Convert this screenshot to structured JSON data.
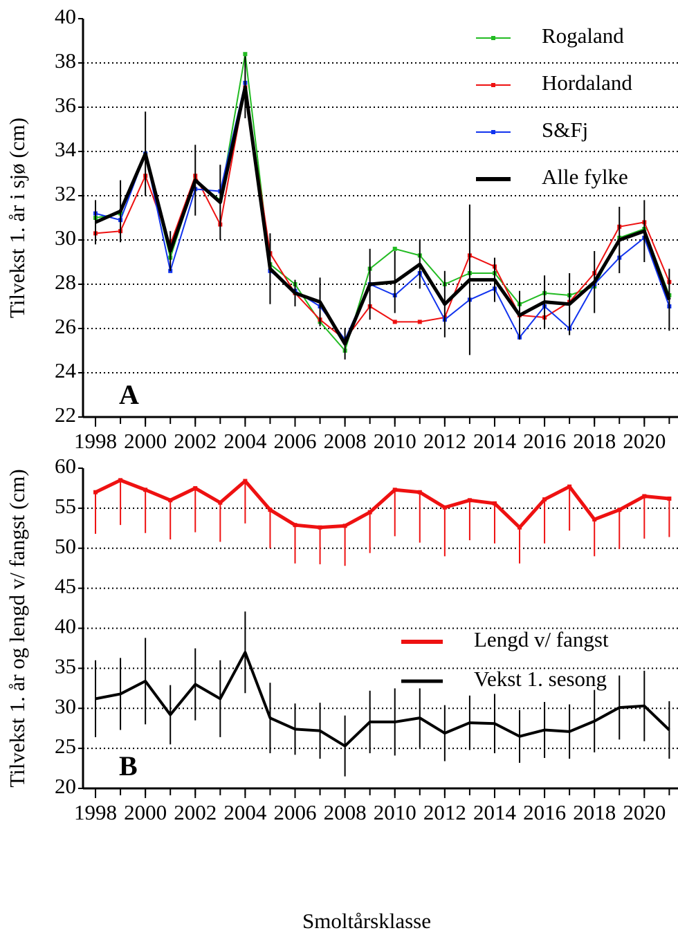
{
  "chart_data": [
    {
      "type": "line",
      "panel_label": "A",
      "y_label": "Tilvekst 1. år i sjø (cm)",
      "x": [
        1998,
        1999,
        2000,
        2001,
        2002,
        2003,
        2004,
        2005,
        2006,
        2007,
        2008,
        2009,
        2010,
        2011,
        2012,
        2013,
        2014,
        2015,
        2016,
        2017,
        2018,
        2019,
        2020,
        2021
      ],
      "xlim": [
        1997.5,
        2021.35
      ],
      "xticks": [
        1998,
        2000,
        2002,
        2004,
        2006,
        2008,
        2010,
        2012,
        2014,
        2016,
        2018,
        2020
      ],
      "ylim": [
        22,
        40
      ],
      "yticks": [
        22,
        24,
        26,
        28,
        30,
        32,
        34,
        36,
        38,
        40
      ],
      "grid": true,
      "legend": "upper right",
      "series": [
        {
          "name": "Rogaland",
          "color": "#22bb22",
          "width": 2,
          "marker": "square",
          "values": [
            31.0,
            31.2,
            33.9,
            29.2,
            32.7,
            31.8,
            38.4,
            28.9,
            28.0,
            26.3,
            25.0,
            28.7,
            29.6,
            29.3,
            28.0,
            28.5,
            28.5,
            27.1,
            27.6,
            27.5,
            27.9,
            30.1,
            30.5,
            27.5
          ]
        },
        {
          "name": "Hordaland",
          "color": "#ee1111",
          "width": 2,
          "marker": "square",
          "values": [
            30.3,
            30.4,
            32.9,
            29.8,
            32.9,
            30.7,
            36.9,
            29.4,
            27.6,
            26.4,
            25.5,
            27.0,
            26.3,
            26.3,
            26.5,
            29.3,
            28.8,
            26.6,
            26.5,
            27.2,
            28.5,
            30.6,
            30.8,
            28.1
          ]
        },
        {
          "name": "S&Fj",
          "color": "#1133ee",
          "width": 2,
          "marker": "square",
          "values": [
            31.2,
            30.9,
            33.9,
            28.6,
            32.3,
            32.2,
            37.1,
            28.6,
            27.7,
            27.0,
            25.5,
            28.0,
            27.5,
            28.5,
            26.4,
            27.3,
            27.8,
            25.6,
            27.0,
            26.0,
            28.0,
            29.2,
            30.1,
            27.0
          ]
        },
        {
          "name": "Alle fylke",
          "color": "#000000",
          "width": 5,
          "error_bars": "both",
          "values": [
            30.8,
            31.3,
            33.9,
            29.5,
            32.7,
            31.7,
            36.9,
            28.7,
            27.6,
            27.2,
            25.3,
            28.0,
            28.1,
            28.9,
            27.1,
            28.2,
            28.2,
            26.6,
            27.2,
            27.1,
            28.1,
            30.0,
            30.4,
            27.3
          ],
          "errors": [
            1.0,
            1.4,
            1.9,
            0.9,
            1.6,
            1.7,
            1.4,
            1.6,
            0.6,
            1.1,
            0.7,
            1.6,
            1.4,
            1.1,
            1.5,
            3.4,
            1.0,
            1.1,
            1.2,
            1.4,
            1.4,
            1.5,
            1.4,
            1.4
          ]
        }
      ]
    },
    {
      "type": "line",
      "panel_label": "B",
      "y_label": "Tilvekst 1. år og lengd v/ fangst (cm)",
      "x_label": "Smoltårsklasse",
      "x": [
        1998,
        1999,
        2000,
        2001,
        2002,
        2003,
        2004,
        2005,
        2006,
        2007,
        2008,
        2009,
        2010,
        2011,
        2012,
        2013,
        2014,
        2015,
        2016,
        2017,
        2018,
        2019,
        2020,
        2021
      ],
      "xlim": [
        1997.5,
        2021.35
      ],
      "xticks": [
        1998,
        2000,
        2002,
        2004,
        2006,
        2008,
        2010,
        2012,
        2014,
        2016,
        2018,
        2020
      ],
      "ylim": [
        20,
        60
      ],
      "yticks": [
        20,
        25,
        30,
        35,
        40,
        45,
        50,
        55,
        60
      ],
      "grid": true,
      "legend": "right",
      "series": [
        {
          "name": "Lengd v/ fangst",
          "color": "#ee1111",
          "width": 5,
          "marker": "square",
          "error_bars": "lower",
          "values": [
            57.0,
            58.5,
            57.3,
            56.0,
            57.5,
            55.7,
            58.4,
            54.8,
            52.9,
            52.6,
            52.8,
            54.5,
            57.3,
            57.0,
            55.1,
            56.0,
            55.6,
            52.6,
            56.1,
            57.7,
            53.6,
            54.8,
            56.5,
            56.2
          ],
          "errors": [
            5.2,
            5.6,
            5.4,
            4.9,
            5.5,
            4.9,
            5.3,
            4.8,
            4.8,
            4.6,
            5.0,
            5.1,
            5.8,
            6.3,
            6.1,
            5.0,
            5.0,
            4.5,
            5.5,
            5.5,
            4.6,
            4.9,
            5.3,
            4.8
          ]
        },
        {
          "name": "Vekst 1. sesong",
          "color": "#000000",
          "width": 4,
          "error_bars": "both",
          "values": [
            31.2,
            31.8,
            33.4,
            29.2,
            33.0,
            31.2,
            37.0,
            28.8,
            27.4,
            27.2,
            25.3,
            28.3,
            28.3,
            28.8,
            26.9,
            28.2,
            28.1,
            26.5,
            27.3,
            27.1,
            28.4,
            30.1,
            30.3,
            27.3
          ],
          "errors": [
            4.8,
            4.5,
            5.4,
            3.7,
            4.5,
            4.8,
            5.1,
            4.4,
            3.2,
            3.5,
            3.8,
            3.9,
            4.2,
            3.7,
            3.5,
            3.4,
            3.7,
            3.3,
            3.5,
            3.4,
            3.9,
            4.0,
            4.4,
            3.6
          ]
        }
      ]
    }
  ]
}
